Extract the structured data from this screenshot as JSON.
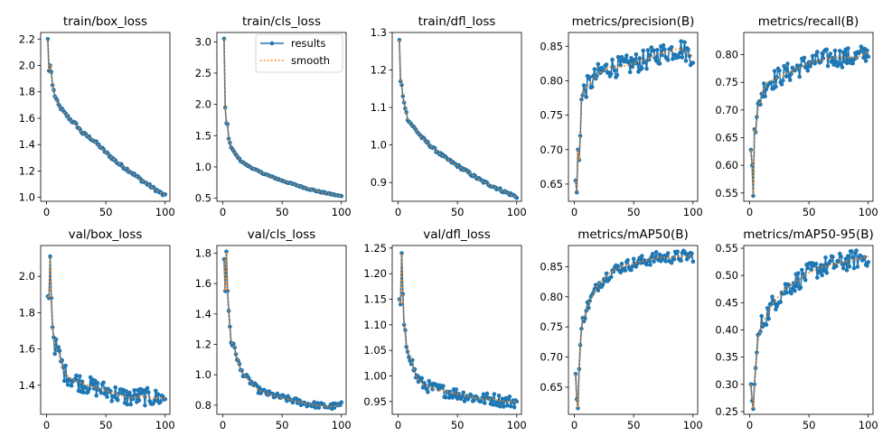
{
  "colors": {
    "results": "#1f77b4",
    "smooth": "#ff7f0e"
  },
  "legend": {
    "results": "results",
    "smooth": "smooth"
  },
  "chart_data": [
    {
      "type": "line",
      "title": "train/box_loss",
      "xlim": [
        -5,
        104
      ],
      "ylim": [
        0.97,
        2.25
      ],
      "xticks": [
        0,
        50,
        100
      ],
      "xtick_labels": [
        "0",
        "50",
        "100"
      ],
      "yticks": [
        1.0,
        1.2,
        1.4,
        1.6,
        1.8,
        2.0,
        2.2
      ],
      "ytick_labels": [
        "1.0",
        "1.2",
        "1.4",
        "1.6",
        "1.8",
        "2.0",
        "2.2"
      ],
      "anchors": [
        [
          1,
          2.2
        ],
        [
          2,
          1.96
        ],
        [
          3,
          2.0
        ],
        [
          4,
          1.95
        ],
        [
          5,
          1.85
        ],
        [
          7,
          1.77
        ],
        [
          10,
          1.7
        ],
        [
          15,
          1.64
        ],
        [
          20,
          1.59
        ],
        [
          25,
          1.55
        ],
        [
          30,
          1.49
        ],
        [
          35,
          1.46
        ],
        [
          40,
          1.43
        ],
        [
          50,
          1.34
        ],
        [
          60,
          1.26
        ],
        [
          70,
          1.2
        ],
        [
          80,
          1.13
        ],
        [
          90,
          1.07
        ],
        [
          100,
          1.01
        ]
      ],
      "noise": 0.012
    },
    {
      "type": "line",
      "title": "train/cls_loss",
      "xlim": [
        -5,
        104
      ],
      "ylim": [
        0.45,
        3.15
      ],
      "xticks": [
        0,
        50,
        100
      ],
      "xtick_labels": [
        "0",
        "50",
        "100"
      ],
      "yticks": [
        0.5,
        1.0,
        1.5,
        2.0,
        2.5,
        3.0
      ],
      "ytick_labels": [
        "0.5",
        "1.0",
        "1.5",
        "2.0",
        "2.5",
        "3.0"
      ],
      "anchors": [
        [
          1,
          3.05
        ],
        [
          2,
          1.95
        ],
        [
          3,
          1.7
        ],
        [
          4,
          1.68
        ],
        [
          5,
          1.45
        ],
        [
          7,
          1.32
        ],
        [
          10,
          1.22
        ],
        [
          15,
          1.1
        ],
        [
          20,
          1.03
        ],
        [
          30,
          0.93
        ],
        [
          40,
          0.85
        ],
        [
          50,
          0.78
        ],
        [
          60,
          0.72
        ],
        [
          70,
          0.66
        ],
        [
          80,
          0.61
        ],
        [
          90,
          0.57
        ],
        [
          100,
          0.53
        ]
      ],
      "noise": 0.01
    },
    {
      "type": "line",
      "title": "train/dfl_loss",
      "xlim": [
        -5,
        104
      ],
      "ylim": [
        0.85,
        1.3
      ],
      "xticks": [
        0,
        50,
        100
      ],
      "xtick_labels": [
        "0",
        "50",
        "100"
      ],
      "yticks": [
        0.9,
        1.0,
        1.1,
        1.2,
        1.3
      ],
      "ytick_labels": [
        "0.9",
        "1.0",
        "1.1",
        "1.2",
        "1.3"
      ],
      "anchors": [
        [
          1,
          1.28
        ],
        [
          2,
          1.17
        ],
        [
          3,
          1.16
        ],
        [
          4,
          1.13
        ],
        [
          6,
          1.1
        ],
        [
          8,
          1.07
        ],
        [
          10,
          1.06
        ],
        [
          15,
          1.04
        ],
        [
          20,
          1.02
        ],
        [
          30,
          0.99
        ],
        [
          40,
          0.965
        ],
        [
          50,
          0.945
        ],
        [
          60,
          0.925
        ],
        [
          70,
          0.905
        ],
        [
          80,
          0.89
        ],
        [
          90,
          0.875
        ],
        [
          100,
          0.862
        ]
      ],
      "noise": 0.004
    },
    {
      "type": "line",
      "title": "metrics/precision(B)",
      "xlim": [
        -5,
        104
      ],
      "ylim": [
        0.625,
        0.87
      ],
      "xticks": [
        0,
        50,
        100
      ],
      "xtick_labels": [
        "0",
        "50",
        "100"
      ],
      "yticks": [
        0.65,
        0.7,
        0.75,
        0.8,
        0.85
      ],
      "ytick_labels": [
        "0.65",
        "0.70",
        "0.75",
        "0.80",
        "0.85"
      ],
      "anchors": [
        [
          1,
          0.655
        ],
        [
          2,
          0.638
        ],
        [
          3,
          0.7
        ],
        [
          4,
          0.685
        ],
        [
          5,
          0.72
        ],
        [
          6,
          0.77
        ],
        [
          8,
          0.785
        ],
        [
          10,
          0.79
        ],
        [
          15,
          0.8
        ],
        [
          20,
          0.81
        ],
        [
          30,
          0.82
        ],
        [
          40,
          0.82
        ],
        [
          50,
          0.825
        ],
        [
          60,
          0.83
        ],
        [
          70,
          0.838
        ],
        [
          80,
          0.843
        ],
        [
          90,
          0.847
        ],
        [
          100,
          0.835
        ]
      ],
      "noise": 0.015
    },
    {
      "type": "line",
      "title": "metrics/recall(B)",
      "xlim": [
        -5,
        104
      ],
      "ylim": [
        0.535,
        0.84
      ],
      "xticks": [
        0,
        50,
        100
      ],
      "xtick_labels": [
        "0",
        "50",
        "100"
      ],
      "yticks": [
        0.55,
        0.6,
        0.65,
        0.7,
        0.75,
        0.8
      ],
      "ytick_labels": [
        "0.55",
        "0.60",
        "0.65",
        "0.70",
        "0.75",
        "0.80"
      ],
      "anchors": [
        [
          1,
          0.628
        ],
        [
          2,
          0.6
        ],
        [
          3,
          0.545
        ],
        [
          4,
          0.665
        ],
        [
          5,
          0.66
        ],
        [
          7,
          0.7
        ],
        [
          10,
          0.73
        ],
        [
          15,
          0.75
        ],
        [
          20,
          0.755
        ],
        [
          30,
          0.765
        ],
        [
          40,
          0.775
        ],
        [
          50,
          0.785
        ],
        [
          60,
          0.79
        ],
        [
          70,
          0.795
        ],
        [
          80,
          0.795
        ],
        [
          90,
          0.795
        ],
        [
          100,
          0.805
        ]
      ],
      "noise": 0.018
    },
    {
      "type": "line",
      "title": "val/box_loss",
      "xlim": [
        -5,
        104
      ],
      "ylim": [
        1.24,
        2.17
      ],
      "xticks": [
        0,
        50,
        100
      ],
      "xtick_labels": [
        "0",
        "50",
        "100"
      ],
      "yticks": [
        1.4,
        1.6,
        1.8,
        2.0
      ],
      "ytick_labels": [
        "1.4",
        "1.6",
        "1.8",
        "2.0"
      ],
      "anchors": [
        [
          1,
          1.89
        ],
        [
          2,
          1.88
        ],
        [
          3,
          2.11
        ],
        [
          4,
          1.88
        ],
        [
          5,
          1.72
        ],
        [
          7,
          1.62
        ],
        [
          10,
          1.58
        ],
        [
          15,
          1.47
        ],
        [
          20,
          1.44
        ],
        [
          30,
          1.41
        ],
        [
          40,
          1.39
        ],
        [
          50,
          1.37
        ],
        [
          60,
          1.35
        ],
        [
          70,
          1.33
        ],
        [
          80,
          1.34
        ],
        [
          90,
          1.33
        ],
        [
          100,
          1.33
        ]
      ],
      "noise": 0.05
    },
    {
      "type": "line",
      "title": "val/cls_loss",
      "xlim": [
        -5,
        104
      ],
      "ylim": [
        0.74,
        1.85
      ],
      "xticks": [
        0,
        50,
        100
      ],
      "xtick_labels": [
        "0",
        "50",
        "100"
      ],
      "yticks": [
        0.8,
        1.0,
        1.2,
        1.4,
        1.6,
        1.8
      ],
      "ytick_labels": [
        "0.8",
        "1.0",
        "1.2",
        "1.4",
        "1.6",
        "1.8"
      ],
      "anchors": [
        [
          1,
          1.76
        ],
        [
          2,
          1.55
        ],
        [
          3,
          1.81
        ],
        [
          4,
          1.55
        ],
        [
          5,
          1.42
        ],
        [
          7,
          1.22
        ],
        [
          10,
          1.17
        ],
        [
          15,
          1.03
        ],
        [
          20,
          0.98
        ],
        [
          30,
          0.9
        ],
        [
          40,
          0.87
        ],
        [
          50,
          0.85
        ],
        [
          60,
          0.83
        ],
        [
          70,
          0.81
        ],
        [
          80,
          0.8
        ],
        [
          90,
          0.79
        ],
        [
          100,
          0.8
        ]
      ],
      "noise": 0.02
    },
    {
      "type": "line",
      "title": "val/dfl_loss",
      "xlim": [
        -5,
        104
      ],
      "ylim": [
        0.925,
        1.255
      ],
      "xticks": [
        0,
        50,
        100
      ],
      "xtick_labels": [
        "0",
        "50",
        "100"
      ],
      "yticks": [
        0.95,
        1.0,
        1.05,
        1.1,
        1.15,
        1.2,
        1.25
      ],
      "ytick_labels": [
        "0.95",
        "1.00",
        "1.05",
        "1.10",
        "1.15",
        "1.20",
        "1.25"
      ],
      "anchors": [
        [
          1,
          1.15
        ],
        [
          2,
          1.14
        ],
        [
          3,
          1.24
        ],
        [
          4,
          1.16
        ],
        [
          5,
          1.1
        ],
        [
          7,
          1.06
        ],
        [
          10,
          1.04
        ],
        [
          15,
          1.0
        ],
        [
          20,
          0.985
        ],
        [
          30,
          0.975
        ],
        [
          40,
          0.97
        ],
        [
          50,
          0.965
        ],
        [
          60,
          0.96
        ],
        [
          70,
          0.955
        ],
        [
          80,
          0.955
        ],
        [
          90,
          0.95
        ],
        [
          100,
          0.95
        ]
      ],
      "noise": 0.012
    },
    {
      "type": "line",
      "title": "metrics/mAP50(B)",
      "xlim": [
        -5,
        104
      ],
      "ylim": [
        0.605,
        0.885
      ],
      "xticks": [
        0,
        50,
        100
      ],
      "xtick_labels": [
        "0",
        "50",
        "100"
      ],
      "yticks": [
        0.65,
        0.7,
        0.75,
        0.8,
        0.85
      ],
      "ytick_labels": [
        "0.65",
        "0.70",
        "0.75",
        "0.80",
        "0.85"
      ],
      "anchors": [
        [
          1,
          0.672
        ],
        [
          2,
          0.63
        ],
        [
          3,
          0.615
        ],
        [
          4,
          0.68
        ],
        [
          5,
          0.72
        ],
        [
          7,
          0.76
        ],
        [
          10,
          0.78
        ],
        [
          15,
          0.8
        ],
        [
          20,
          0.82
        ],
        [
          30,
          0.84
        ],
        [
          40,
          0.85
        ],
        [
          50,
          0.855
        ],
        [
          60,
          0.86
        ],
        [
          70,
          0.865
        ],
        [
          80,
          0.865
        ],
        [
          90,
          0.867
        ],
        [
          100,
          0.868
        ]
      ],
      "noise": 0.01
    },
    {
      "type": "line",
      "title": "metrics/mAP50-95(B)",
      "xlim": [
        -5,
        104
      ],
      "ylim": [
        0.245,
        0.555
      ],
      "xticks": [
        0,
        50,
        100
      ],
      "xtick_labels": [
        "0",
        "50",
        "100"
      ],
      "yticks": [
        0.25,
        0.3,
        0.35,
        0.4,
        0.45,
        0.5,
        0.55
      ],
      "ytick_labels": [
        "0.25",
        "0.30",
        "0.35",
        "0.40",
        "0.45",
        "0.50",
        "0.55"
      ],
      "anchors": [
        [
          1,
          0.3
        ],
        [
          2,
          0.27
        ],
        [
          3,
          0.255
        ],
        [
          4,
          0.3
        ],
        [
          5,
          0.33
        ],
        [
          7,
          0.38
        ],
        [
          10,
          0.41
        ],
        [
          15,
          0.43
        ],
        [
          20,
          0.45
        ],
        [
          30,
          0.475
        ],
        [
          40,
          0.49
        ],
        [
          50,
          0.505
        ],
        [
          60,
          0.515
        ],
        [
          70,
          0.52
        ],
        [
          80,
          0.525
        ],
        [
          90,
          0.53
        ],
        [
          100,
          0.535
        ]
      ],
      "noise": 0.018
    }
  ]
}
